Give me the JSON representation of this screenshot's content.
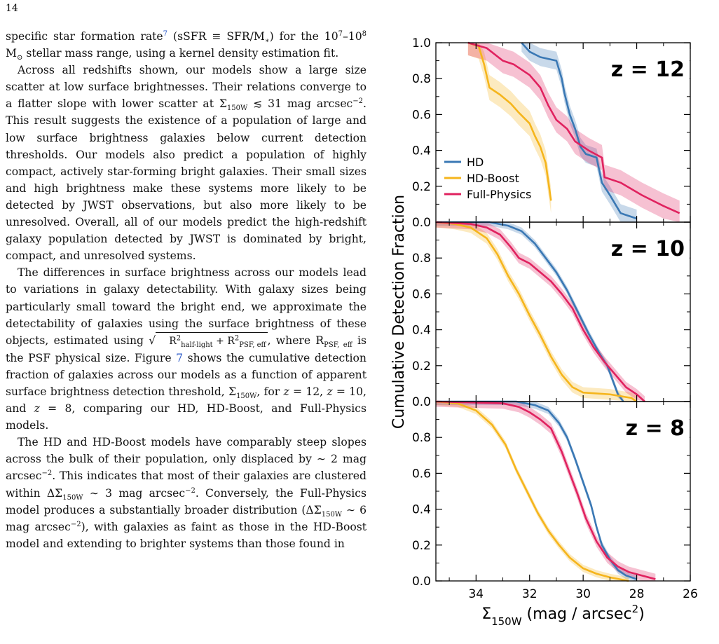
{
  "page_number": "14",
  "paragraphs": [
    {
      "indent": false,
      "html": "specific star formation rate<sup class=\"link\">7</sup> (sSFR ≡ SFR/M<sub>∗</sub>) for the 10<sup>7</sup>–10<sup>8</sup> M<sub>⊙</sub> stellar mass range, using a kernel density estimation fit."
    },
    {
      "indent": true,
      "html": "Across all redshifts shown, our models show a large size scatter at low surface brightnesses. Their relations converge to a flatter slope with lower scatter at Σ<sub>150W</sub> ≲ 31 mag arcsec<sup>−2</sup>. This result suggests the existence of a population of large and low surface brightness galaxies below current detection thresholds. Our models also predict a population of highly compact, actively star-forming bright galaxies. Their small sizes and high brightness make these systems more likely to be detected by JWST observations, but also more likely to be unresolved. Overall, all of our models predict the high-redshift galaxy population detected by JWST is dominated by bright, compact, and unresolved systems."
    },
    {
      "indent": true,
      "html": "The differences in surface brightness across our models lead to variations in galaxy detectability. With galaxy sizes being particularly small toward the bright end, we approximate the detectability of galaxies using the surface brightness of these objects, estimated using <span class=\"sqrt\">√<span class=\"rad\">R<sup>2</sup><sub>half-light</sub> + R<sup>2</sup><sub>PSF, eff</sub></span></span>, where R<sub>PSF, eff</sub> is the PSF physical size. Figure <span class=\"link\">7</span> shows the cumulative detection fraction of galaxies across our models as a function of apparent surface brightness detection threshold, Σ<sub>150W</sub>, for <i>z</i> = 12, <i>z</i> = 10, and <i>z</i> = 8, comparing our HD, HD-Boost, and Full-Physics models."
    },
    {
      "indent": true,
      "html": "The HD and HD-Boost models have comparably steep slopes across the bulk of their population, only displaced by ∼ 2 mag arcsec<sup>−2</sup>. This indicates that most of their galaxies are clustered within ΔΣ<sub>150W</sub> ∼ 3 mag arcsec<sup>−2</sup>. Conversely, the Full-Physics model produces a substantially broader distribution (ΔΣ<sub>150W</sub> ∼ 6 mag arcsec<sup>−2</sup>), with galaxies as faint as those in the HD-Boost model and extending to brighter systems than those found in"
    }
  ],
  "figure": {
    "ylabel": "Cumulative Detection Fraction",
    "xlabel": "Σ<tspan baseline-shift=\"sub\" font-size=\"15\">150W</tspan> (mag / arcsec<tspan baseline-shift=\"super\" font-size=\"15\">2</tspan>)",
    "colors": {
      "HD": "#3a78b4",
      "HD-Boost": "#f5b51c",
      "Full-Physics": "#e0225f"
    }
  },
  "chart_data": {
    "type": "line",
    "x_axis": {
      "label": "Σ150W (mag / arcsec2)",
      "xlim": [
        35.5,
        26
      ],
      "inverted": true,
      "ticks": [
        34,
        32,
        30,
        28,
        26
      ]
    },
    "y_axis": {
      "label": "Cumulative Detection Fraction",
      "ylim": [
        0,
        1
      ],
      "ticks": [
        0.0,
        0.2,
        0.4,
        0.6,
        0.8,
        1.0
      ]
    },
    "legend": {
      "entries": [
        "HD",
        "HD-Boost",
        "Full-Physics"
      ],
      "placement": "center-left (top panel)"
    },
    "panels": [
      {
        "title": "z = 12",
        "series": [
          {
            "name": "HD",
            "points": [
              [
                32.3,
                1.0
              ],
              [
                32.0,
                0.95
              ],
              [
                31.6,
                0.92
              ],
              [
                31.0,
                0.9
              ],
              [
                30.8,
                0.8
              ],
              [
                30.7,
                0.72
              ],
              [
                30.5,
                0.6
              ],
              [
                30.3,
                0.52
              ],
              [
                30.1,
                0.42
              ],
              [
                29.9,
                0.38
              ],
              [
                29.5,
                0.36
              ],
              [
                29.3,
                0.22
              ],
              [
                29.0,
                0.15
              ],
              [
                28.6,
                0.05
              ],
              [
                28.0,
                0.02
              ]
            ],
            "band": 0.05
          },
          {
            "name": "HD-Boost",
            "points": [
              [
                34.3,
                1.0
              ],
              [
                33.9,
                0.98
              ],
              [
                33.7,
                0.88
              ],
              [
                33.5,
                0.75
              ],
              [
                33.1,
                0.71
              ],
              [
                32.7,
                0.66
              ],
              [
                32.4,
                0.61
              ],
              [
                32.0,
                0.55
              ],
              [
                31.8,
                0.48
              ],
              [
                31.6,
                0.42
              ],
              [
                31.4,
                0.33
              ],
              [
                31.2,
                0.12
              ]
            ],
            "band": 0.07
          },
          {
            "name": "Full-Physics",
            "points": [
              [
                34.3,
                1.0
              ],
              [
                33.6,
                0.97
              ],
              [
                33.0,
                0.9
              ],
              [
                32.6,
                0.88
              ],
              [
                32.0,
                0.82
              ],
              [
                31.6,
                0.75
              ],
              [
                31.3,
                0.65
              ],
              [
                31.0,
                0.57
              ],
              [
                30.6,
                0.52
              ],
              [
                30.3,
                0.45
              ],
              [
                29.8,
                0.4
              ],
              [
                29.3,
                0.36
              ],
              [
                29.2,
                0.25
              ],
              [
                28.6,
                0.22
              ],
              [
                27.8,
                0.15
              ],
              [
                27.0,
                0.09
              ],
              [
                26.4,
                0.05
              ]
            ],
            "band": 0.07
          }
        ]
      },
      {
        "title": "z = 10",
        "series": [
          {
            "name": "HD",
            "points": [
              [
                35.5,
                1.0
              ],
              [
                33.5,
                1.0
              ],
              [
                32.8,
                0.98
              ],
              [
                32.3,
                0.95
              ],
              [
                31.8,
                0.88
              ],
              [
                31.4,
                0.8
              ],
              [
                31.0,
                0.72
              ],
              [
                30.6,
                0.62
              ],
              [
                30.2,
                0.5
              ],
              [
                29.8,
                0.38
              ],
              [
                29.4,
                0.27
              ],
              [
                29.1,
                0.2
              ],
              [
                28.9,
                0.12
              ],
              [
                28.7,
                0.04
              ],
              [
                28.5,
                0.0
              ]
            ],
            "band": 0.02
          },
          {
            "name": "HD-Boost",
            "points": [
              [
                35.5,
                1.0
              ],
              [
                34.8,
                0.99
              ],
              [
                34.2,
                0.97
              ],
              [
                33.6,
                0.91
              ],
              [
                33.2,
                0.82
              ],
              [
                32.8,
                0.7
              ],
              [
                32.4,
                0.6
              ],
              [
                32.0,
                0.48
              ],
              [
                31.6,
                0.37
              ],
              [
                31.2,
                0.25
              ],
              [
                30.8,
                0.15
              ],
              [
                30.4,
                0.08
              ],
              [
                30.0,
                0.05
              ],
              [
                29.0,
                0.04
              ],
              [
                28.2,
                0.02
              ],
              [
                28.0,
                0.0
              ]
            ],
            "band": 0.03
          },
          {
            "name": "Full-Physics",
            "points": [
              [
                35.5,
                1.0
              ],
              [
                34.2,
                0.99
              ],
              [
                33.6,
                0.97
              ],
              [
                33.1,
                0.93
              ],
              [
                32.7,
                0.86
              ],
              [
                32.4,
                0.8
              ],
              [
                32.0,
                0.77
              ],
              [
                31.6,
                0.72
              ],
              [
                31.2,
                0.67
              ],
              [
                30.8,
                0.6
              ],
              [
                30.4,
                0.52
              ],
              [
                30.0,
                0.4
              ],
              [
                29.6,
                0.3
              ],
              [
                29.2,
                0.22
              ],
              [
                28.8,
                0.15
              ],
              [
                28.4,
                0.08
              ],
              [
                28.0,
                0.04
              ],
              [
                27.7,
                0.0
              ]
            ],
            "band": 0.03
          }
        ]
      },
      {
        "title": "z = 8",
        "series": [
          {
            "name": "HD",
            "points": [
              [
                35.5,
                1.0
              ],
              [
                32.5,
                1.0
              ],
              [
                31.8,
                0.98
              ],
              [
                31.3,
                0.95
              ],
              [
                30.9,
                0.88
              ],
              [
                30.6,
                0.8
              ],
              [
                30.3,
                0.68
              ],
              [
                30.0,
                0.55
              ],
              [
                29.7,
                0.42
              ],
              [
                29.5,
                0.3
              ],
              [
                29.3,
                0.2
              ],
              [
                29.0,
                0.12
              ],
              [
                28.7,
                0.06
              ],
              [
                28.4,
                0.03
              ],
              [
                28.0,
                0.01
              ]
            ],
            "band": 0.02
          },
          {
            "name": "HD-Boost",
            "points": [
              [
                35.5,
                1.0
              ],
              [
                34.7,
                0.99
              ],
              [
                34.0,
                0.95
              ],
              [
                33.4,
                0.87
              ],
              [
                32.9,
                0.76
              ],
              [
                32.5,
                0.62
              ],
              [
                32.1,
                0.5
              ],
              [
                31.7,
                0.38
              ],
              [
                31.3,
                0.28
              ],
              [
                30.9,
                0.2
              ],
              [
                30.5,
                0.13
              ],
              [
                30.0,
                0.07
              ],
              [
                29.5,
                0.04
              ],
              [
                29.0,
                0.02
              ],
              [
                28.3,
                0.0
              ]
            ],
            "band": 0.02
          },
          {
            "name": "Full-Physics",
            "points": [
              [
                35.5,
                1.0
              ],
              [
                33.0,
                0.99
              ],
              [
                32.4,
                0.97
              ],
              [
                32.0,
                0.94
              ],
              [
                31.6,
                0.9
              ],
              [
                31.2,
                0.85
              ],
              [
                30.8,
                0.72
              ],
              [
                30.5,
                0.6
              ],
              [
                30.2,
                0.48
              ],
              [
                29.9,
                0.35
              ],
              [
                29.5,
                0.22
              ],
              [
                29.1,
                0.13
              ],
              [
                28.7,
                0.08
              ],
              [
                28.3,
                0.05
              ],
              [
                27.8,
                0.03
              ],
              [
                27.3,
                0.01
              ]
            ],
            "band": 0.03
          }
        ]
      }
    ]
  }
}
